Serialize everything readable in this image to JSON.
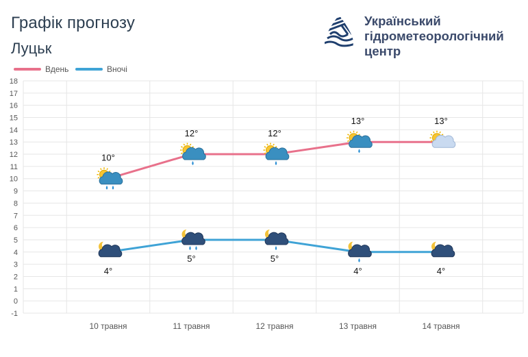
{
  "header": {
    "title": "Графік прогнозу",
    "city": "Луцьк"
  },
  "logo": {
    "line1": "Український",
    "line2": "гідрометеорологічний",
    "line3": "центр",
    "colors": {
      "blue": "#1f3f6e",
      "yellow": "#f4c430",
      "text": "#3b4a6b"
    }
  },
  "legend": [
    {
      "label": "Вдень",
      "color": "#e8718b"
    },
    {
      "label": "Вночі",
      "color": "#3fa3d6"
    }
  ],
  "chart_data": {
    "type": "line",
    "categories": [
      "10 травня",
      "11 травня",
      "12 травня",
      "13 травня",
      "14 травня"
    ],
    "ylim": [
      -1,
      18
    ],
    "yticks": [
      -1,
      0,
      1,
      2,
      3,
      4,
      5,
      6,
      7,
      8,
      9,
      10,
      11,
      12,
      13,
      14,
      15,
      16,
      17,
      18
    ],
    "grid": true,
    "legend_position": "top-left",
    "series": [
      {
        "name": "Вдень",
        "color": "#e8718b",
        "values": [
          10,
          12,
          12,
          13,
          13
        ],
        "labels": [
          "10°",
          "12°",
          "12°",
          "13°",
          "13°"
        ],
        "icons": [
          "sun-cloud-rain-icon",
          "sun-cloud-rain-icon",
          "sun-cloud-rain-icon",
          "sun-cloud-rain-icon",
          "sun-cloud-icon"
        ]
      },
      {
        "name": "Вночі",
        "color": "#3fa3d6",
        "values": [
          4,
          5,
          5,
          4,
          4
        ],
        "labels": [
          "4°",
          "5°",
          "5°",
          "4°",
          "4°"
        ],
        "icons": [
          "moon-cloud-icon",
          "moon-cloud-rain-icon",
          "moon-cloud-rain-icon",
          "moon-cloud-rain-icon",
          "moon-cloud-icon"
        ]
      }
    ]
  }
}
